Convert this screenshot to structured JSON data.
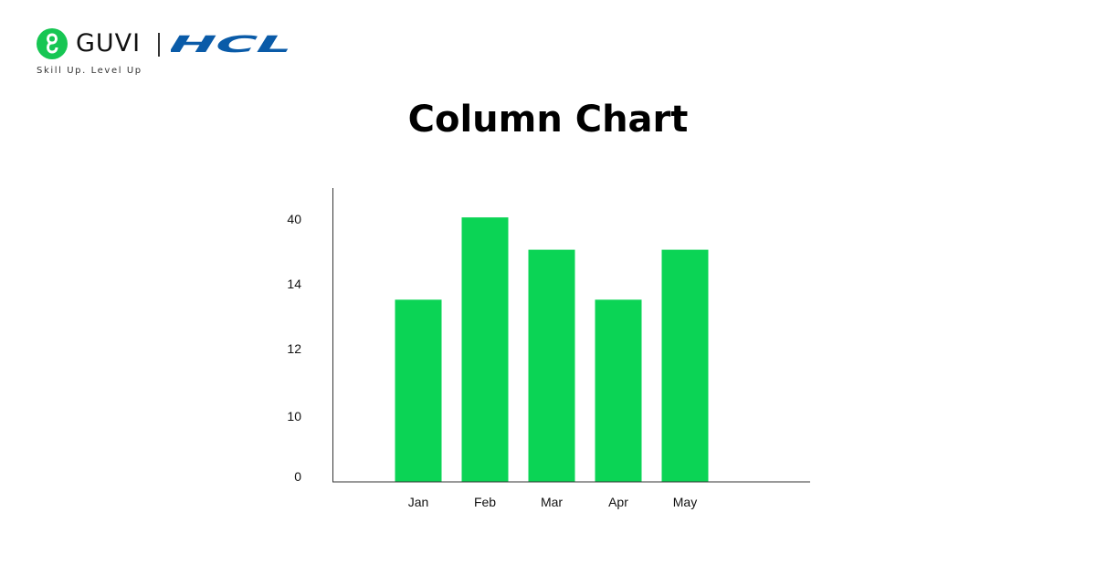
{
  "brand": {
    "name": "GUVI",
    "partner": "HCL",
    "tagline": "Skill Up. Level Up"
  },
  "colors": {
    "bar": "#0bd455",
    "guvi_green": "#17c653",
    "hcl_blue": "#0a5ba8",
    "axis": "#333333"
  },
  "chart_data": {
    "type": "bar",
    "title": "Column Chart",
    "xlabel": "",
    "ylabel": "",
    "categories": [
      "Jan",
      "Feb",
      "Mar",
      "Apr",
      "May"
    ],
    "y_tick_labels": [
      "0",
      "10",
      "12",
      "14",
      "40"
    ],
    "bar_levels": [
      0.62,
      0.9,
      0.79,
      0.62,
      0.79
    ],
    "grid": false,
    "legend": "none"
  }
}
